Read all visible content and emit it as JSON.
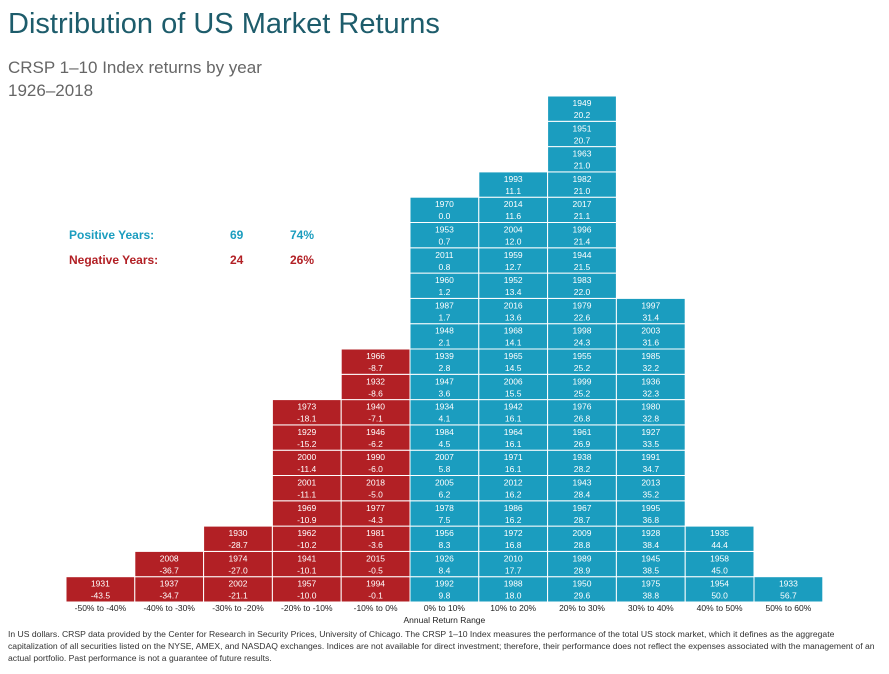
{
  "title": "Distribution of US Market Returns",
  "subtitle_line1": "CRSP 1–10 Index returns by year",
  "subtitle_line2": "1926–2018",
  "stats": {
    "positive": {
      "label": "Positive Years:",
      "count": "69",
      "pct": "74%"
    },
    "negative": {
      "label": "Negative Years:",
      "count": "24",
      "pct": "26%"
    }
  },
  "colors": {
    "negative": "#b22025",
    "positive": "#1b9dbf",
    "title": "#1d5c6b",
    "positive_text": "#1b9dbf",
    "negative_text": "#b22025"
  },
  "footnote": "In US dollars. CRSP data provided by the Center for Research in Security Prices, University of Chicago. The CRSP 1–10 Index measures the performance of the total US stock market, which it defines as the aggregate capitalization of all securities listed on the NYSE, AMEX, and NASDAQ exchanges. Indices are not available for direct investment; therefore, their performance does not reflect the expenses associated with the management of an actual portfolio. Past performance is not a guarantee of future results.",
  "chart_data": {
    "type": "bar",
    "xlabel": "Annual Return Range",
    "ylabel": "",
    "categories": [
      "-50% to -40%",
      "-40% to -30%",
      "-30% to -20%",
      "-20% to -10%",
      "-10% to 0%",
      "0% to 10%",
      "10% to 20%",
      "20% to 30%",
      "30% to 40%",
      "40% to 50%",
      "50% to 60%"
    ],
    "counts": [
      1,
      2,
      3,
      8,
      10,
      16,
      17,
      20,
      12,
      3,
      1
    ],
    "bins": [
      {
        "sign": "negative",
        "years": [
          [
            "1931",
            "-43.5"
          ]
        ]
      },
      {
        "sign": "negative",
        "years": [
          [
            "1937",
            "-34.7"
          ],
          [
            "2008",
            "-36.7"
          ]
        ]
      },
      {
        "sign": "negative",
        "years": [
          [
            "2002",
            "-21.1"
          ],
          [
            "1974",
            "-27.0"
          ],
          [
            "1930",
            "-28.7"
          ]
        ]
      },
      {
        "sign": "negative",
        "years": [
          [
            "1957",
            "-10.0"
          ],
          [
            "1941",
            "-10.1"
          ],
          [
            "1962",
            "-10.2"
          ],
          [
            "1969",
            "-10.9"
          ],
          [
            "2001",
            "-11.1"
          ],
          [
            "2000",
            "-11.4"
          ],
          [
            "1929",
            "-15.2"
          ],
          [
            "1973",
            "-18.1"
          ]
        ]
      },
      {
        "sign": "negative",
        "years": [
          [
            "1994",
            "-0.1"
          ],
          [
            "2015",
            "-0.5"
          ],
          [
            "1981",
            "-3.6"
          ],
          [
            "1977",
            "-4.3"
          ],
          [
            "2018",
            "-5.0"
          ],
          [
            "1990",
            "-6.0"
          ],
          [
            "1946",
            "-6.2"
          ],
          [
            "1940",
            "-7.1"
          ],
          [
            "1932",
            "-8.6"
          ],
          [
            "1966",
            "-8.7"
          ]
        ]
      },
      {
        "sign": "positive",
        "years": [
          [
            "1992",
            "9.8"
          ],
          [
            "1926",
            "8.4"
          ],
          [
            "1956",
            "8.3"
          ],
          [
            "1978",
            "7.5"
          ],
          [
            "2005",
            "6.2"
          ],
          [
            "2007",
            "5.8"
          ],
          [
            "1984",
            "4.5"
          ],
          [
            "1934",
            "4.1"
          ],
          [
            "1947",
            "3.6"
          ],
          [
            "1939",
            "2.8"
          ],
          [
            "1948",
            "2.1"
          ],
          [
            "1987",
            "1.7"
          ],
          [
            "1960",
            "1.2"
          ],
          [
            "2011",
            "0.8"
          ],
          [
            "1953",
            "0.7"
          ],
          [
            "1970",
            "0.0"
          ]
        ]
      },
      {
        "sign": "positive",
        "years": [
          [
            "1988",
            "18.0"
          ],
          [
            "2010",
            "17.7"
          ],
          [
            "1972",
            "16.8"
          ],
          [
            "1986",
            "16.2"
          ],
          [
            "2012",
            "16.2"
          ],
          [
            "1971",
            "16.1"
          ],
          [
            "1964",
            "16.1"
          ],
          [
            "1942",
            "16.1"
          ],
          [
            "2006",
            "15.5"
          ],
          [
            "1965",
            "14.5"
          ],
          [
            "1968",
            "14.1"
          ],
          [
            "2016",
            "13.6"
          ],
          [
            "1952",
            "13.4"
          ],
          [
            "1959",
            "12.7"
          ],
          [
            "2004",
            "12.0"
          ],
          [
            "2014",
            "11.6"
          ],
          [
            "1993",
            "11.1"
          ]
        ]
      },
      {
        "sign": "positive",
        "years": [
          [
            "1950",
            "29.6"
          ],
          [
            "1989",
            "28.9"
          ],
          [
            "2009",
            "28.8"
          ],
          [
            "1967",
            "28.7"
          ],
          [
            "1943",
            "28.4"
          ],
          [
            "1938",
            "28.2"
          ],
          [
            "1961",
            "26.9"
          ],
          [
            "1976",
            "26.8"
          ],
          [
            "1999",
            "25.2"
          ],
          [
            "1955",
            "25.2"
          ],
          [
            "1998",
            "24.3"
          ],
          [
            "1979",
            "22.6"
          ],
          [
            "1983",
            "22.0"
          ],
          [
            "1944",
            "21.5"
          ],
          [
            "1996",
            "21.4"
          ],
          [
            "2017",
            "21.1"
          ],
          [
            "1982",
            "21.0"
          ],
          [
            "1963",
            "21.0"
          ],
          [
            "1951",
            "20.7"
          ],
          [
            "1949",
            "20.2"
          ]
        ]
      },
      {
        "sign": "positive",
        "years": [
          [
            "1975",
            "38.8"
          ],
          [
            "1945",
            "38.5"
          ],
          [
            "1928",
            "38.4"
          ],
          [
            "1995",
            "36.8"
          ],
          [
            "2013",
            "35.2"
          ],
          [
            "1991",
            "34.7"
          ],
          [
            "1927",
            "33.5"
          ],
          [
            "1980",
            "32.8"
          ],
          [
            "1936",
            "32.3"
          ],
          [
            "1985",
            "32.2"
          ],
          [
            "2003",
            "31.6"
          ],
          [
            "1997",
            "31.4"
          ]
        ]
      },
      {
        "sign": "positive",
        "years": [
          [
            "1954",
            "50.0"
          ],
          [
            "1958",
            "45.0"
          ],
          [
            "1935",
            "44.4"
          ]
        ]
      },
      {
        "sign": "positive",
        "years": [
          [
            "1933",
            "56.7"
          ]
        ]
      }
    ]
  }
}
